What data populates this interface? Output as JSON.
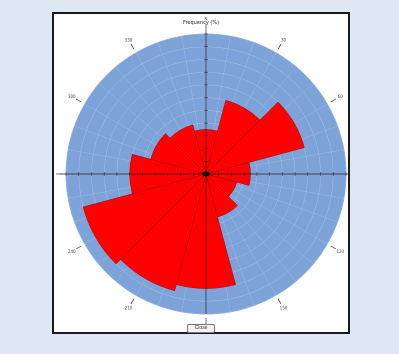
{
  "colors": {
    "background": "#dfe7f3",
    "frame_border": "#1a1a1a",
    "plot_fill": "#7ea3d9",
    "petal": "#ff0000",
    "grid": "#a9c2e6"
  },
  "chart_data": {
    "type": "rose",
    "title": "Frequency (%)",
    "direction_labels": [
      "N",
      "30",
      "60",
      "E",
      "120",
      "150",
      "S",
      "210",
      "240",
      "W",
      "300",
      "330"
    ],
    "sectors": [
      {
        "center_deg": 0,
        "width_deg": 30,
        "value": 3.5
      },
      {
        "center_deg": 30,
        "width_deg": 30,
        "value": 6.0
      },
      {
        "center_deg": 60,
        "width_deg": 30,
        "value": 8.0
      },
      {
        "center_deg": 90,
        "width_deg": 30,
        "value": 3.5
      },
      {
        "center_deg": 120,
        "width_deg": 30,
        "value": 2.5
      },
      {
        "center_deg": 150,
        "width_deg": 30,
        "value": 3.5
      },
      {
        "center_deg": 180,
        "width_deg": 30,
        "value": 9.0
      },
      {
        "center_deg": 210,
        "width_deg": 30,
        "value": 9.5
      },
      {
        "center_deg": 240,
        "width_deg": 30,
        "value": 10.0
      },
      {
        "center_deg": 270,
        "width_deg": 30,
        "value": 6.0
      },
      {
        "center_deg": 300,
        "width_deg": 30,
        "value": 4.5
      },
      {
        "center_deg": 330,
        "width_deg": 30,
        "value": 4.0
      }
    ],
    "r_range": [
      0,
      11
    ],
    "grid": true,
    "legend": "none"
  },
  "controls": {
    "bottom_button_label": "Close"
  }
}
